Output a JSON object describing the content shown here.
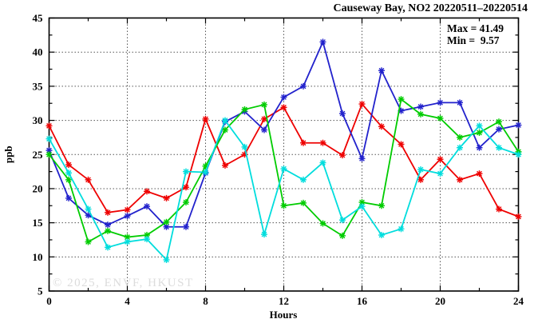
{
  "chart_data": {
    "type": "line",
    "title": "Causeway Bay, NO2 20220511–20220514",
    "xlabel": "Hours",
    "ylabel": "ppb",
    "xlim": [
      0,
      24
    ],
    "ylim": [
      5,
      45
    ],
    "grid": true,
    "x_major_ticks": [
      0,
      4,
      8,
      12,
      16,
      20,
      24
    ],
    "x_minor_step": 2,
    "y_major_ticks": [
      5,
      10,
      15,
      20,
      25,
      30,
      35,
      40,
      45
    ],
    "y_minor_step": 2.5,
    "legend_position": "top-right-inside",
    "annotations": {
      "max_label": "Max = 41.49",
      "min_label": "Min =  9.57"
    },
    "max_value": 41.49,
    "min_value": 9.57,
    "watermark": "© 2025, ENVF, HKUST",
    "x": [
      0,
      1,
      2,
      3,
      4,
      5,
      6,
      7,
      8,
      9,
      10,
      11,
      12,
      13,
      14,
      15,
      16,
      17,
      18,
      19,
      20,
      21,
      22,
      23,
      24
    ],
    "series": [
      {
        "name": "red-line",
        "color": "#ee0000",
        "values": [
          29.2,
          23.5,
          21.3,
          16.5,
          16.9,
          19.6,
          18.6,
          20.2,
          30.2,
          23.4,
          25.0,
          30.2,
          31.9,
          26.7,
          26.7,
          24.9,
          32.4,
          29.1,
          26.5,
          21.3,
          24.3,
          21.3,
          22.2,
          17.0,
          15.9
        ]
      },
      {
        "name": "blue-line",
        "color": "#2222cc",
        "values": [
          25.6,
          18.6,
          16.1,
          14.7,
          16.0,
          17.4,
          14.4,
          14.4,
          22.3,
          29.8,
          31.3,
          28.6,
          33.4,
          35.0,
          41.49,
          31.0,
          24.4,
          37.3,
          31.4,
          32.0,
          32.6,
          32.6,
          26.0,
          28.7,
          29.3
        ]
      },
      {
        "name": "green-line",
        "color": "#00cc00",
        "values": [
          25.0,
          21.3,
          12.2,
          13.8,
          12.9,
          13.2,
          15.1,
          18.0,
          23.3,
          28.6,
          31.6,
          32.3,
          17.5,
          17.9,
          14.9,
          13.1,
          18.0,
          17.5,
          33.1,
          30.9,
          30.3,
          27.5,
          28.2,
          29.8,
          25.4
        ]
      },
      {
        "name": "cyan-line",
        "color": "#00dddd",
        "values": [
          27.3,
          22.3,
          17.0,
          11.4,
          12.2,
          12.6,
          9.57,
          22.5,
          22.4,
          30.0,
          26.1,
          13.3,
          22.9,
          21.3,
          23.8,
          15.4,
          17.4,
          13.2,
          14.1,
          22.8,
          22.2,
          26.0,
          29.2,
          26.0,
          25.0
        ]
      }
    ],
    "colors": {
      "grid": "#555555",
      "axis": "#000000",
      "watermark": "#dcdcdc"
    }
  }
}
